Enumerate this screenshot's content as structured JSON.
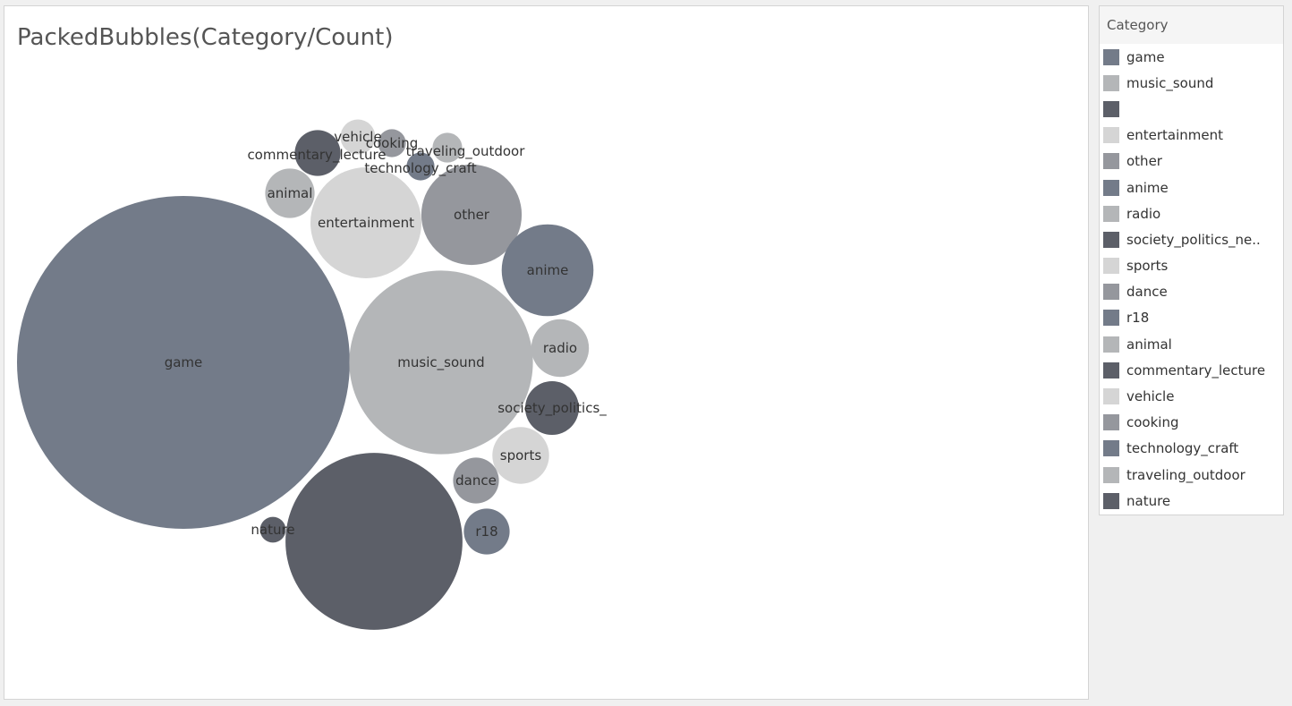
{
  "chart_data": {
    "type": "packed-bubble",
    "title": "PackedBubbles(Category/Count)",
    "size_field": "Count",
    "color_field": "Category",
    "palette": [
      "#737b89",
      "#b4b6b8",
      "#5c5f68",
      "#d5d5d5",
      "#95979d"
    ],
    "bubbles": [
      {
        "category": "game",
        "value": 1000,
        "label": "game"
      },
      {
        "category": "",
        "value": 283,
        "label": ""
      },
      {
        "category": "music_sound",
        "value": 304,
        "label": "music_sound"
      },
      {
        "category": "entertainment",
        "value": 111,
        "label": "entertainment"
      },
      {
        "category": "other",
        "value": 91,
        "label": "other"
      },
      {
        "category": "anime",
        "value": 76,
        "label": "anime"
      },
      {
        "category": "radio",
        "value": 30,
        "label": "radio"
      },
      {
        "category": "society_politics_news",
        "value": 26,
        "label": "society_politics_"
      },
      {
        "category": "sports",
        "value": 29,
        "label": "sports"
      },
      {
        "category": "dance",
        "value": 19,
        "label": "dance"
      },
      {
        "category": "r18",
        "value": 19,
        "label": "r18"
      },
      {
        "category": "animal",
        "value": 22,
        "label": "animal"
      },
      {
        "category": "commentary_lecture",
        "value": 19,
        "label": "commentary_lecture"
      },
      {
        "category": "vehicle",
        "value": 11,
        "label": "vehicle"
      },
      {
        "category": "cooking",
        "value": 7,
        "label": "cooking"
      },
      {
        "category": "technology_craft",
        "value": 7,
        "label": "technology_craft"
      },
      {
        "category": "traveling_outdoor",
        "value": 8,
        "label": "traveling_outdoor"
      },
      {
        "category": "nature",
        "value": 6,
        "label": "nature"
      }
    ]
  },
  "legend": {
    "title": "Category",
    "items": [
      {
        "label": "game",
        "color": "#737b89"
      },
      {
        "label": "music_sound",
        "color": "#b4b6b8"
      },
      {
        "label": "",
        "color": "#5c5f68"
      },
      {
        "label": "entertainment",
        "color": "#d5d5d5"
      },
      {
        "label": "other",
        "color": "#95979d"
      },
      {
        "label": "anime",
        "color": "#737b89"
      },
      {
        "label": "radio",
        "color": "#b4b6b8"
      },
      {
        "label": "society_politics_ne..",
        "color": "#5c5f68"
      },
      {
        "label": "sports",
        "color": "#d5d5d5"
      },
      {
        "label": "dance",
        "color": "#95979d"
      },
      {
        "label": "r18",
        "color": "#737b89"
      },
      {
        "label": "animal",
        "color": "#b4b6b8"
      },
      {
        "label": "commentary_lecture",
        "color": "#5c5f68"
      },
      {
        "label": "vehicle",
        "color": "#d5d5d5"
      },
      {
        "label": "cooking",
        "color": "#95979d"
      },
      {
        "label": "technology_craft",
        "color": "#737b89"
      },
      {
        "label": "traveling_outdoor",
        "color": "#b4b6b8"
      },
      {
        "label": "nature",
        "color": "#5c5f68"
      }
    ]
  }
}
